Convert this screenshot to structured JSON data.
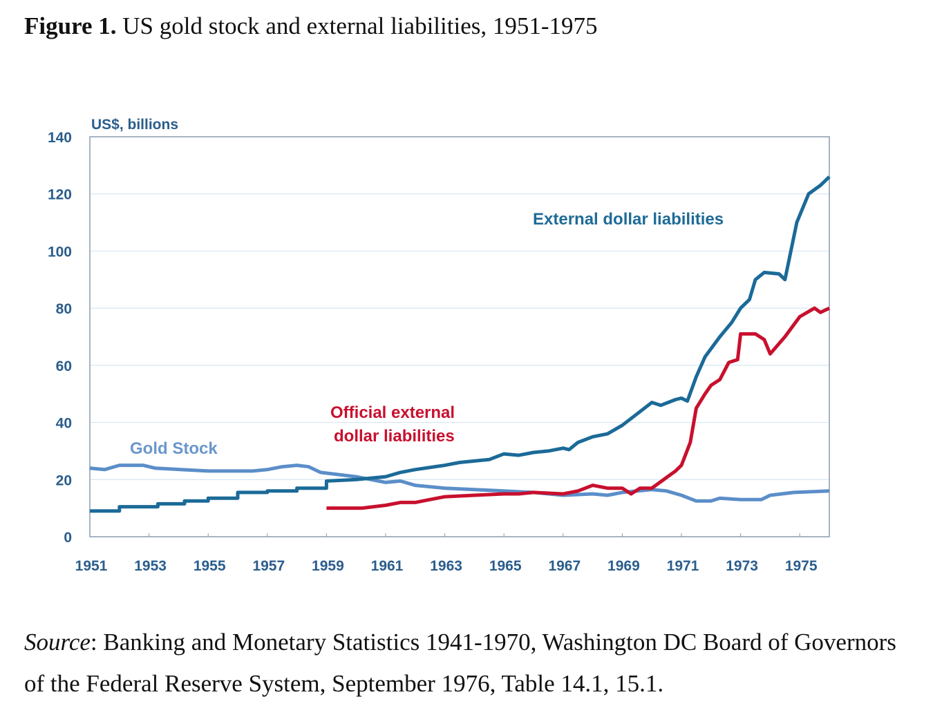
{
  "figure": {
    "label": "Figure 1.",
    "title": "US gold stock and external liabilities, 1951-1975",
    "source_label": "Source",
    "source_text": ": Banking and Monetary Statistics 1941-1970, Washington DC Board of Governors of the Federal Reserve System, September 1976, Table 14.1, 15.1."
  },
  "chart_data": {
    "type": "line",
    "title": "US gold stock and external liabilities, 1951-1975",
    "ylabel": "US$, billions",
    "xlabel": "",
    "xlim": [
      1951,
      1976
    ],
    "ylim": [
      0,
      140
    ],
    "yticks": [
      0,
      20,
      40,
      60,
      80,
      100,
      120,
      140
    ],
    "xticks": [
      1951,
      1953,
      1955,
      1957,
      1959,
      1961,
      1963,
      1965,
      1967,
      1969,
      1971,
      1973,
      1975
    ],
    "grid": true,
    "series": [
      {
        "name": "Gold Stock",
        "color": "#5b8ec9",
        "x": [
          1951,
          1951.5,
          1952,
          1952.8,
          1953.2,
          1955,
          1956.5,
          1957,
          1957.5,
          1958,
          1958.4,
          1958.8,
          1960,
          1961,
          1961.5,
          1962,
          1963,
          1965,
          1966,
          1967,
          1968,
          1968.5,
          1969,
          1970,
          1970.5,
          1971,
          1971.5,
          1972,
          1972.3,
          1973,
          1973.7,
          1974,
          1974.8,
          1976
        ],
        "y": [
          24,
          23.5,
          25,
          25,
          24,
          23,
          23,
          23.5,
          24.5,
          25,
          24.5,
          22.5,
          21,
          19,
          19.5,
          18,
          17,
          16,
          15.5,
          14.5,
          15,
          14.5,
          15.5,
          16.5,
          16,
          14.5,
          12.5,
          12.5,
          13.5,
          13,
          13,
          14.5,
          15.5,
          16
        ]
      },
      {
        "name": "External dollar liabilities",
        "color": "#1b6a98",
        "x": [
          1951,
          1952,
          1952,
          1953.3,
          1953.3,
          1954.2,
          1954.2,
          1955,
          1955,
          1956,
          1956,
          1957,
          1957,
          1958,
          1958,
          1959,
          1959,
          1960,
          1961,
          1961.5,
          1962,
          1963,
          1963.5,
          1964.5,
          1965,
          1965.5,
          1966,
          1966.5,
          1967,
          1967.2,
          1967.5,
          1968,
          1968.5,
          1969,
          1969.5,
          1970,
          1970.3,
          1970.8,
          1971,
          1971.2,
          1971.5,
          1971.8,
          1972.3,
          1972.7,
          1973,
          1973.3,
          1973.5,
          1973.8,
          1974.3,
          1974.5,
          1974.9,
          1975.3,
          1975.7,
          1976
        ],
        "y": [
          9,
          9,
          10.5,
          10.5,
          11.5,
          11.5,
          12.5,
          12.5,
          13.5,
          13.5,
          15.5,
          15.5,
          16,
          16,
          17,
          17,
          19.5,
          20,
          21,
          22.5,
          23.5,
          25,
          26,
          27,
          29,
          28.5,
          29.5,
          30,
          31,
          30.5,
          33,
          35,
          36,
          39,
          43,
          47,
          46,
          48,
          48.5,
          47.5,
          56,
          63,
          70,
          75,
          80,
          83,
          90,
          92.5,
          92,
          90,
          110,
          120,
          123,
          126
        ]
      },
      {
        "name": "Official external dollar liabilities",
        "color": "#c8102e",
        "x": [
          1959,
          1960.2,
          1961,
          1961.5,
          1962,
          1962.5,
          1963,
          1964,
          1965,
          1965.5,
          1966,
          1967,
          1967.5,
          1968,
          1968.5,
          1969,
          1969.3,
          1969.6,
          1970,
          1970.4,
          1970.8,
          1971,
          1971.3,
          1971.5,
          1971.8,
          1972,
          1972.3,
          1972.6,
          1972.9,
          1973,
          1973.5,
          1973.8,
          1974,
          1974.5,
          1975,
          1975.5,
          1975.7,
          1976
        ],
        "y": [
          10,
          10,
          11,
          12,
          12,
          13,
          14,
          14.5,
          15,
          15,
          15.5,
          15,
          16,
          18,
          17,
          17,
          15,
          17,
          17,
          20,
          23,
          25,
          33,
          45,
          50,
          53,
          55,
          61,
          62,
          71,
          71,
          69,
          64,
          70,
          77,
          80,
          78.5,
          80
        ]
      }
    ],
    "annotations": [
      {
        "text": "Gold Stock",
        "series": "Gold Stock"
      },
      {
        "text": "External dollar liabilities",
        "series": "External dollar liabilities"
      },
      {
        "text": "Official external",
        "series": "Official external dollar liabilities"
      },
      {
        "text": "dollar liabilities",
        "series": "Official external dollar liabilities"
      }
    ]
  }
}
